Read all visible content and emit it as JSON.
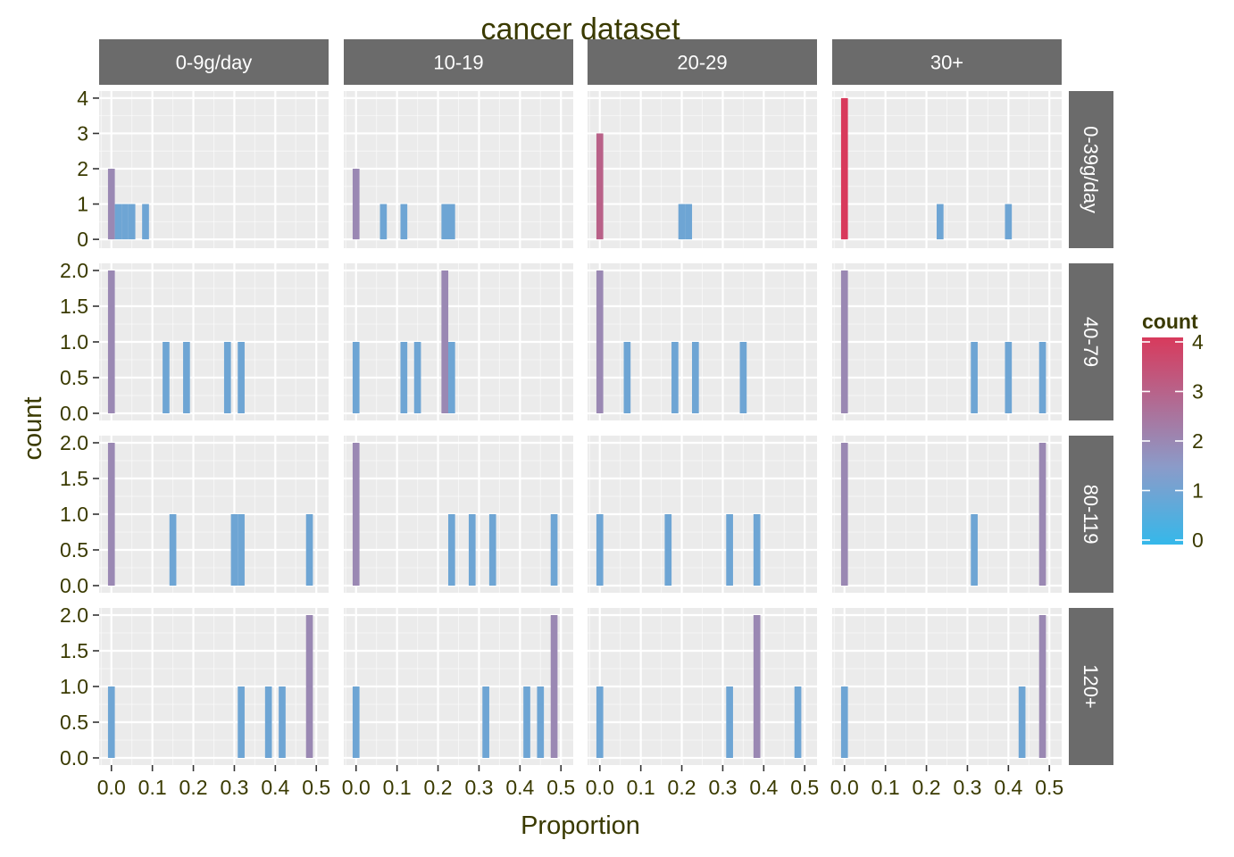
{
  "chart_data": {
    "type": "bar",
    "title": "cancer dataset",
    "xlabel": "Proportion",
    "ylabel": "count",
    "col_facets": [
      "0-9g/day",
      "10-19",
      "20-29",
      "30+"
    ],
    "row_facets": [
      "0-39g/day",
      "40-79",
      "80-119",
      "120+"
    ],
    "xlim": [
      -0.03,
      0.53
    ],
    "x_ticks": [
      0.0,
      0.1,
      0.2,
      0.3,
      0.4,
      0.5
    ],
    "x_tick_labels": [
      "0.0",
      "0.1",
      "0.2",
      "0.3",
      "0.4",
      "0.5"
    ],
    "bin_width": 0.0167,
    "row_scales": [
      {
        "ylim": [
          -0.25,
          4.2
        ],
        "ticks": [
          0,
          1,
          2,
          3,
          4
        ],
        "tick_labels": [
          "0",
          "1",
          "2",
          "3",
          "4"
        ]
      },
      {
        "ylim": [
          -0.1,
          2.1
        ],
        "ticks": [
          0,
          0.5,
          1,
          1.5,
          2
        ],
        "tick_labels": [
          "0.0",
          "0.5",
          "1.0",
          "1.5",
          "2.0"
        ]
      },
      {
        "ylim": [
          -0.1,
          2.1
        ],
        "ticks": [
          0,
          0.5,
          1,
          1.5,
          2
        ],
        "tick_labels": [
          "0.0",
          "0.5",
          "1.0",
          "1.5",
          "2.0"
        ]
      },
      {
        "ylim": [
          -0.1,
          2.1
        ],
        "ticks": [
          0,
          0.5,
          1,
          1.5,
          2
        ],
        "tick_labels": [
          "0.0",
          "0.5",
          "1.0",
          "1.5",
          "2.0"
        ]
      }
    ],
    "panels": [
      {
        "row": 0,
        "col": 0,
        "bars": [
          {
            "x": 0.0,
            "count": 2
          },
          {
            "x": 0.0167,
            "count": 1
          },
          {
            "x": 0.0333,
            "count": 1
          },
          {
            "x": 0.05,
            "count": 1
          },
          {
            "x": 0.0833,
            "count": 1
          }
        ]
      },
      {
        "row": 0,
        "col": 1,
        "bars": [
          {
            "x": 0.0,
            "count": 2
          },
          {
            "x": 0.0667,
            "count": 1
          },
          {
            "x": 0.1167,
            "count": 1
          },
          {
            "x": 0.2167,
            "count": 1
          },
          {
            "x": 0.2333,
            "count": 1
          }
        ]
      },
      {
        "row": 0,
        "col": 2,
        "bars": [
          {
            "x": 0.0,
            "count": 3
          },
          {
            "x": 0.2,
            "count": 1
          },
          {
            "x": 0.2167,
            "count": 1
          }
        ]
      },
      {
        "row": 0,
        "col": 3,
        "bars": [
          {
            "x": 0.0,
            "count": 4
          },
          {
            "x": 0.2333,
            "count": 1
          },
          {
            "x": 0.4,
            "count": 1
          }
        ]
      },
      {
        "row": 1,
        "col": 0,
        "bars": [
          {
            "x": 0.0,
            "count": 2
          },
          {
            "x": 0.1333,
            "count": 1
          },
          {
            "x": 0.1833,
            "count": 1
          },
          {
            "x": 0.2833,
            "count": 1
          },
          {
            "x": 0.3167,
            "count": 1
          }
        ]
      },
      {
        "row": 1,
        "col": 1,
        "bars": [
          {
            "x": 0.0,
            "count": 1
          },
          {
            "x": 0.1167,
            "count": 1
          },
          {
            "x": 0.15,
            "count": 1
          },
          {
            "x": 0.2167,
            "count": 2
          },
          {
            "x": 0.2333,
            "count": 1
          }
        ]
      },
      {
        "row": 1,
        "col": 2,
        "bars": [
          {
            "x": 0.0,
            "count": 2
          },
          {
            "x": 0.0667,
            "count": 1
          },
          {
            "x": 0.1833,
            "count": 1
          },
          {
            "x": 0.2333,
            "count": 1
          },
          {
            "x": 0.35,
            "count": 1
          }
        ]
      },
      {
        "row": 1,
        "col": 3,
        "bars": [
          {
            "x": 0.0,
            "count": 2
          },
          {
            "x": 0.3167,
            "count": 1
          },
          {
            "x": 0.4,
            "count": 1
          },
          {
            "x": 0.4833,
            "count": 1
          }
        ]
      },
      {
        "row": 2,
        "col": 0,
        "bars": [
          {
            "x": 0.0,
            "count": 2
          },
          {
            "x": 0.15,
            "count": 1
          },
          {
            "x": 0.3,
            "count": 1
          },
          {
            "x": 0.3167,
            "count": 1
          },
          {
            "x": 0.4833,
            "count": 1
          }
        ]
      },
      {
        "row": 2,
        "col": 1,
        "bars": [
          {
            "x": 0.0,
            "count": 2
          },
          {
            "x": 0.2333,
            "count": 1
          },
          {
            "x": 0.2833,
            "count": 1
          },
          {
            "x": 0.3333,
            "count": 1
          },
          {
            "x": 0.4833,
            "count": 1
          }
        ]
      },
      {
        "row": 2,
        "col": 2,
        "bars": [
          {
            "x": 0.0,
            "count": 1
          },
          {
            "x": 0.1667,
            "count": 1
          },
          {
            "x": 0.3167,
            "count": 1
          },
          {
            "x": 0.3833,
            "count": 1
          }
        ]
      },
      {
        "row": 2,
        "col": 3,
        "bars": [
          {
            "x": 0.0,
            "count": 2
          },
          {
            "x": 0.3167,
            "count": 1
          },
          {
            "x": 0.4833,
            "count": 2
          }
        ]
      },
      {
        "row": 3,
        "col": 0,
        "bars": [
          {
            "x": 0.0,
            "count": 1
          },
          {
            "x": 0.3167,
            "count": 1
          },
          {
            "x": 0.3833,
            "count": 1
          },
          {
            "x": 0.4167,
            "count": 1
          },
          {
            "x": 0.4833,
            "count": 2
          }
        ]
      },
      {
        "row": 3,
        "col": 1,
        "bars": [
          {
            "x": 0.0,
            "count": 1
          },
          {
            "x": 0.3167,
            "count": 1
          },
          {
            "x": 0.4167,
            "count": 1
          },
          {
            "x": 0.45,
            "count": 1
          },
          {
            "x": 0.4833,
            "count": 2
          }
        ]
      },
      {
        "row": 3,
        "col": 2,
        "bars": [
          {
            "x": 0.0,
            "count": 1
          },
          {
            "x": 0.3167,
            "count": 1
          },
          {
            "x": 0.3833,
            "count": 2
          },
          {
            "x": 0.4833,
            "count": 1
          }
        ]
      },
      {
        "row": 3,
        "col": 3,
        "bars": [
          {
            "x": 0.0,
            "count": 1
          },
          {
            "x": 0.4333,
            "count": 1
          },
          {
            "x": 0.4833,
            "count": 2
          }
        ]
      }
    ],
    "legend": {
      "title": "count",
      "placement": "right",
      "range": [
        0,
        4
      ],
      "ticks": [
        0,
        1,
        2,
        3,
        4
      ],
      "tick_labels": [
        "0",
        "1",
        "2",
        "3",
        "4"
      ],
      "color_low": "#35b8ea",
      "color_mid": "#8b9bc9",
      "color_high": "#d83a5c"
    },
    "grid": true
  },
  "colors": {
    "panel_bg": "#ebebeb",
    "grid_major": "#ffffff",
    "strip_bg": "#6b6b6b",
    "strip_text": "#ffffff",
    "text": "#3a3a00"
  }
}
